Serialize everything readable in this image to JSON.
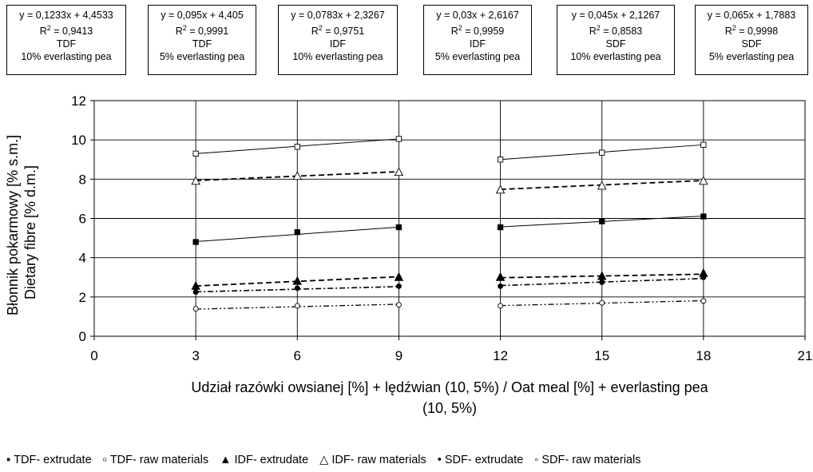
{
  "equation_boxes": [
    {
      "eq": "y = 0,1233x + 4,4533",
      "r2_prefix": "R",
      "r2_sup": "2",
      "r2_value": " = 0,9413",
      "type": "TDF",
      "sample": "10% everlasting pea"
    },
    {
      "eq": "y = 0,095x + 4,405",
      "r2_prefix": "R",
      "r2_sup": "2",
      "r2_value": " = 0,9991",
      "type": "TDF",
      "sample": "5% everlasting pea"
    },
    {
      "eq": "y = 0,0783x + 2,3267",
      "r2_prefix": "R",
      "r2_sup": "2",
      "r2_value": " = 0,9751",
      "type": "IDF",
      "sample": "10% everlasting pea"
    },
    {
      "eq": "y = 0,03x + 2,6167",
      "r2_prefix": "R",
      "r2_sup": "2",
      "r2_value": " = 0,9959",
      "type": "IDF",
      "sample": "5% everlasting pea"
    },
    {
      "eq": "y = 0,045x + 2,1267",
      "r2_prefix": "R",
      "r2_sup": "2",
      "r2_value": " = 0,8583",
      "type": "SDF",
      "sample": "10% everlasting pea"
    },
    {
      "eq": "y = 0,065x + 1,7883",
      "r2_prefix": "R",
      "r2_sup": "2",
      "r2_value": " = 0,9998",
      "type": "SDF",
      "sample": "5% everlasting pea"
    }
  ],
  "chart_data": {
    "type": "scatter",
    "ylabel_line1": "Błonnik pokarmowy [% s.m.]",
    "ylabel_line2": "Dietary fibre [% d.m.]",
    "xlabel_line1": "Udział razówki owsianej [%] + lędźwian (10, 5%) / Oat meal [%] + everlasting pea",
    "xlabel_line2": "(10, 5%)",
    "xlim": [
      0,
      21
    ],
    "ylim": [
      0,
      12
    ],
    "xticks": [
      0,
      3,
      6,
      9,
      12,
      15,
      18,
      21
    ],
    "yticks": [
      0,
      2,
      4,
      6,
      8,
      10,
      12
    ],
    "grid": true,
    "legend_position": "bottom",
    "series": [
      {
        "name": "TDF- extrudate",
        "marker": "square-filled",
        "line": "solid",
        "x": [
          3,
          6,
          9,
          12,
          15,
          18
        ],
        "y": [
          4.8,
          5.3,
          5.55,
          5.55,
          5.85,
          6.1
        ],
        "trend": [
          {
            "x": [
              3,
              9
            ],
            "y": [
              4.82,
              5.56
            ]
          },
          {
            "x": [
              12,
              18
            ],
            "y": [
              5.57,
              6.12
            ]
          }
        ]
      },
      {
        "name": "TDF- raw materials",
        "marker": "square-open",
        "line": "solid",
        "x": [
          3,
          6,
          9,
          12,
          15,
          18
        ],
        "y": [
          9.3,
          9.65,
          10.05,
          9.0,
          9.35,
          9.75
        ],
        "trend": [
          {
            "x": [
              3,
              9
            ],
            "y": [
              9.3,
              10.05
            ]
          },
          {
            "x": [
              12,
              18
            ],
            "y": [
              9.0,
              9.75
            ]
          }
        ]
      },
      {
        "name": "IDF- extrudate",
        "marker": "triangle-filled",
        "line": "dashed",
        "x": [
          3,
          6,
          9,
          12,
          15,
          18
        ],
        "y": [
          2.55,
          2.8,
          3.0,
          3.0,
          3.05,
          3.2
        ],
        "trend": [
          {
            "x": [
              3,
              9
            ],
            "y": [
              2.56,
              3.03
            ]
          },
          {
            "x": [
              12,
              18
            ],
            "y": [
              2.98,
              3.16
            ]
          }
        ]
      },
      {
        "name": "IDF- raw materials",
        "marker": "triangle-open",
        "line": "dashed",
        "x": [
          3,
          6,
          9,
          12,
          15,
          18
        ],
        "y": [
          7.9,
          8.15,
          8.35,
          7.45,
          7.65,
          7.9
        ],
        "trend": [
          {
            "x": [
              3,
              9
            ],
            "y": [
              7.93,
              8.38
            ]
          },
          {
            "x": [
              12,
              18
            ],
            "y": [
              7.48,
              7.93
            ]
          }
        ]
      },
      {
        "name": "SDF- extrudate",
        "marker": "circle-filled",
        "line": "dashdot",
        "x": [
          3,
          6,
          9,
          12,
          15,
          18
        ],
        "y": [
          2.25,
          2.45,
          2.55,
          2.55,
          2.75,
          3.0
        ],
        "trend": [
          {
            "x": [
              3,
              9
            ],
            "y": [
              2.26,
              2.53
            ]
          },
          {
            "x": [
              12,
              18
            ],
            "y": [
              2.58,
              2.94
            ]
          }
        ]
      },
      {
        "name": "SDF- raw materials",
        "marker": "circle-open",
        "line": "dashdotdot",
        "x": [
          3,
          6,
          9,
          12,
          15,
          18
        ],
        "y": [
          1.4,
          1.55,
          1.6,
          1.55,
          1.7,
          1.8
        ],
        "trend": [
          {
            "x": [
              3,
              9
            ],
            "y": [
              1.38,
              1.63
            ]
          },
          {
            "x": [
              12,
              18
            ],
            "y": [
              1.56,
              1.81
            ]
          }
        ]
      }
    ]
  }
}
